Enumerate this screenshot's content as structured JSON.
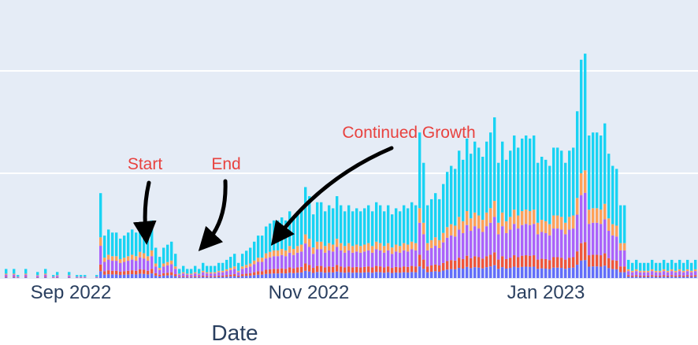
{
  "chart_data": {
    "type": "bar",
    "stacked": true,
    "xlabel": "Date",
    "x_ticks": [
      "Sep 2022",
      "Nov 2022",
      "Jan 2023"
    ],
    "grid": true,
    "colors": {
      "plot_bg": "#e5ecf6",
      "grid": "#ffffff",
      "axis_text": "#2a3f5f",
      "annotation_text": "#e8423f",
      "arrow": "#000000"
    },
    "series_colors": [
      "#636efa",
      "#ef553b",
      "#ab63fa",
      "#ffa15a",
      "#19d3f3"
    ],
    "y_total_per_day": [
      3,
      0,
      3,
      1,
      0,
      3,
      0,
      0,
      2,
      0,
      3,
      0,
      1,
      2,
      0,
      0,
      2,
      0,
      1,
      1,
      1,
      0,
      0,
      1,
      28,
      14,
      16,
      15,
      15,
      13,
      14,
      15,
      16,
      15,
      18,
      17,
      15,
      19,
      10,
      7,
      10,
      11,
      12,
      8,
      3,
      4,
      3,
      3,
      4,
      3,
      5,
      4,
      4,
      4,
      5,
      5,
      6,
      7,
      8,
      5,
      8,
      9,
      10,
      12,
      14,
      14,
      17,
      18,
      19,
      19,
      20,
      19,
      22,
      20,
      22,
      23,
      30,
      27,
      21,
      25,
      25,
      22,
      24,
      23,
      27,
      24,
      22,
      24,
      22,
      23,
      22,
      23,
      24,
      22,
      25,
      24,
      22,
      24,
      21,
      23,
      22,
      24,
      23,
      25,
      24,
      48,
      38,
      24,
      26,
      28,
      26,
      31,
      35,
      37,
      36,
      42,
      39,
      46,
      41,
      45,
      43,
      40,
      45,
      48,
      53,
      38,
      45,
      39,
      42,
      47,
      43,
      46,
      47,
      46,
      47,
      38,
      40,
      39,
      37,
      43,
      43,
      42,
      38,
      42,
      43,
      55,
      72,
      74,
      47,
      48,
      48,
      47,
      51,
      41,
      37,
      36,
      24,
      24,
      6,
      5,
      6,
      5,
      5,
      5,
      6,
      5,
      5,
      6,
      5,
      6,
      5,
      6,
      5,
      6,
      5,
      6,
      5,
      6,
      5,
      6,
      6,
      5,
      7,
      6,
      12,
      22,
      18
    ],
    "annotations": [
      {
        "label": "Start",
        "text": "Start",
        "day_index": 24
      },
      {
        "label": "End",
        "text": "End",
        "day_index": 44
      },
      {
        "label": "Continued Growth",
        "text": "Continued Growth",
        "day_index": 72
      }
    ]
  }
}
